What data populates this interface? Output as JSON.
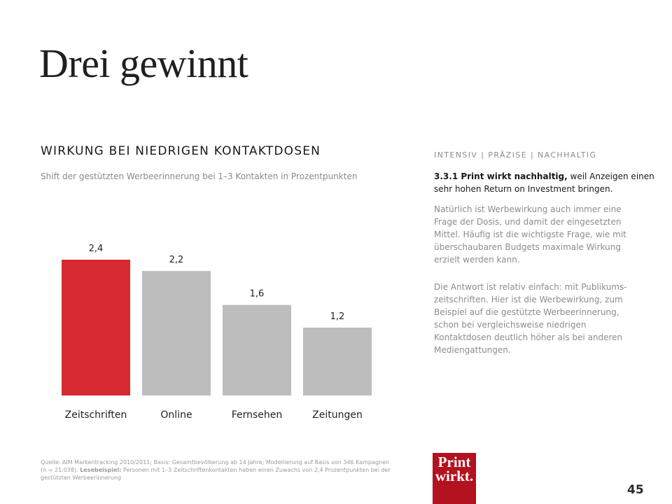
{
  "title": "Drei gewinnt",
  "section": {
    "heading": "WIRKUNG BEI NIEDRIGEN KONTAKTDOSEN",
    "subheading": "Shift der gestützten Werbeerinnerung bei 1–3 Kontakten in Prozentpunkten"
  },
  "chart_data": {
    "type": "bar",
    "categories": [
      "Zeitschriften",
      "Online",
      "Fernsehen",
      "Zeitungen"
    ],
    "values": [
      2.4,
      2.2,
      1.6,
      1.2
    ],
    "value_labels": [
      "2,4",
      "2,2",
      "1,6",
      "1,2"
    ],
    "title": "",
    "xlabel": "",
    "ylabel": "",
    "ylim": [
      0,
      2.4
    ],
    "grid": false,
    "colors": [
      "#d72b32",
      "#bdbdbd",
      "#bdbdbd",
      "#bdbdbd"
    ]
  },
  "sidebar": {
    "heading": "INTENSIV | PRÄZISE | NACHHALTIG",
    "lead_bold": "3.3.1 Print wirkt nachhaltig,",
    "lead_rest": " weil Anzeigen einen sehr hohen Return on Investment bringen.",
    "para1": "Natürlich ist Werbewirkung auch immer eine Frage der Dosis, und damit der eingesetzten Mittel. Häufig ist die wichtigste Frage, wie mit überschaubaren Budgets maximale Wirkung erzielt werden kann.",
    "para2": "Die Antwort ist relativ einfach: mit Publikums-zeitschriften. Hier ist die Werbewirkung, zum Beispiel auf die gestützte Werbeerinnerung, schon bei vergleichsweise niedrigen Kontaktdosen deutlich höher als bei anderen Mediengattungen."
  },
  "footer": {
    "source_pre": "Quelle: AIM Markentracking 2010/2011; Basis: Gesamtbevölkerung ab 14 Jahre; Modellierung auf Basis von 346 Kampagnen (n = 21.038). ",
    "source_bold": "Lesebeispiel:",
    "source_post": " Personen mit 1–3 Zeitschriftenkontakten haben einen Zuwachs von 2,4 Prozentpunkten bei der gestützten Werbeerinnerung",
    "logo_line1": "Print",
    "logo_line2": "wirkt.",
    "page_number": "45"
  }
}
